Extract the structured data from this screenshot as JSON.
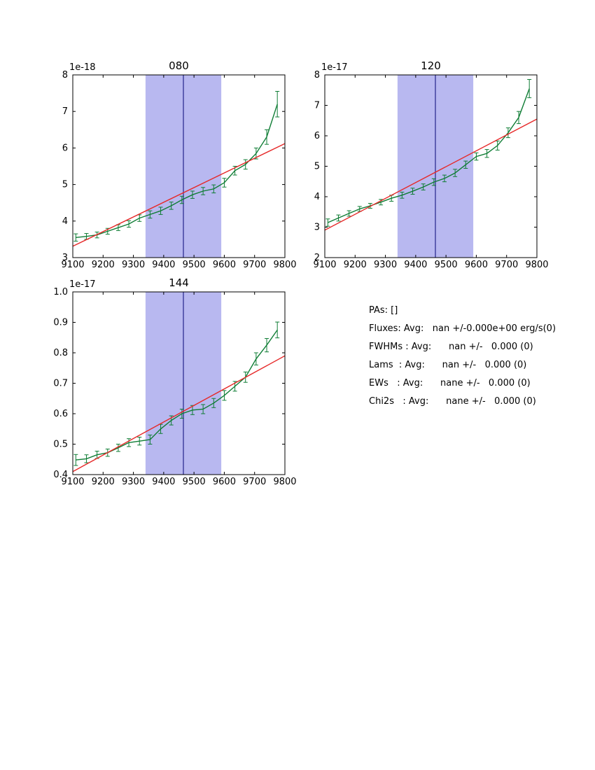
{
  "page": {
    "background": "#ffffff"
  },
  "colors": {
    "band_fill": "#b8b8f0",
    "band_line": "#23238c",
    "spectrum_green": "#0f7d35",
    "fit_red": "#e62929",
    "axis": "#000000"
  },
  "info": {
    "lines": [
      "PAs: []",
      "Fluxes: Avg:   nan +/-0.000e+00 erg/s(0)",
      "FWHMs : Avg:      nan +/-   0.000 (0)",
      "Lams  : Avg:      nan +/-   0.000 (0)",
      "EWs   : Avg:      nane +/-   0.000 (0)",
      "Chi2s   : Avg:      nane +/-   0.000 (0)"
    ]
  },
  "chart_data": [
    {
      "type": "line",
      "title": "080",
      "offset_label": "1e-18",
      "xlabel": "",
      "ylabel": "",
      "xlim": [
        9100,
        9800
      ],
      "ylim": [
        3,
        8
      ],
      "xticks": [
        9100,
        9200,
        9300,
        9400,
        9500,
        9600,
        9700,
        9800
      ],
      "yticks": [
        3,
        4,
        5,
        6,
        7,
        8
      ],
      "yticklabels": [
        "3",
        "4",
        "5",
        "6",
        "7",
        "8"
      ],
      "grid": false,
      "band": {
        "xmin": 9340,
        "xmax": 9590,
        "center": 9465
      },
      "series": [
        {
          "name": "spectrum",
          "color": "#0f7d35",
          "x": [
            9110,
            9145,
            9180,
            9215,
            9250,
            9285,
            9320,
            9355,
            9390,
            9425,
            9460,
            9495,
            9530,
            9565,
            9600,
            9635,
            9670,
            9705,
            9740,
            9775
          ],
          "y": [
            3.55,
            3.58,
            3.62,
            3.72,
            3.82,
            3.92,
            4.08,
            4.18,
            4.28,
            4.42,
            4.58,
            4.72,
            4.82,
            4.88,
            5.05,
            5.38,
            5.55,
            5.85,
            6.3,
            7.2
          ],
          "yerr": [
            0.1,
            0.08,
            0.08,
            0.08,
            0.08,
            0.09,
            0.09,
            0.1,
            0.1,
            0.1,
            0.1,
            0.1,
            0.1,
            0.11,
            0.12,
            0.12,
            0.13,
            0.15,
            0.2,
            0.35
          ]
        },
        {
          "name": "linear-fit",
          "color": "#e62929",
          "x": [
            9100,
            9800
          ],
          "y": [
            3.31,
            6.12
          ]
        }
      ]
    },
    {
      "type": "line",
      "title": "120",
      "offset_label": "1e-17",
      "xlabel": "",
      "ylabel": "",
      "xlim": [
        9100,
        9800
      ],
      "ylim": [
        2,
        8
      ],
      "xticks": [
        9100,
        9200,
        9300,
        9400,
        9500,
        9600,
        9700,
        9800
      ],
      "yticks": [
        2,
        3,
        4,
        5,
        6,
        7,
        8
      ],
      "yticklabels": [
        "2",
        "3",
        "4",
        "5",
        "6",
        "7",
        "8"
      ],
      "grid": false,
      "band": {
        "xmin": 9340,
        "xmax": 9590,
        "center": 9465
      },
      "series": [
        {
          "name": "spectrum",
          "color": "#0f7d35",
          "x": [
            9110,
            9145,
            9180,
            9215,
            9250,
            9285,
            9320,
            9355,
            9390,
            9425,
            9460,
            9495,
            9530,
            9565,
            9600,
            9635,
            9670,
            9705,
            9740,
            9775
          ],
          "y": [
            3.15,
            3.3,
            3.45,
            3.6,
            3.7,
            3.82,
            3.95,
            4.05,
            4.18,
            4.32,
            4.48,
            4.6,
            4.78,
            5.05,
            5.32,
            5.42,
            5.68,
            6.1,
            6.6,
            7.55
          ],
          "yerr": [
            0.12,
            0.1,
            0.09,
            0.08,
            0.08,
            0.09,
            0.1,
            0.1,
            0.1,
            0.1,
            0.11,
            0.11,
            0.12,
            0.12,
            0.12,
            0.13,
            0.15,
            0.16,
            0.2,
            0.3
          ]
        },
        {
          "name": "linear-fit",
          "color": "#e62929",
          "x": [
            9100,
            9800
          ],
          "y": [
            2.9,
            6.55
          ]
        }
      ]
    },
    {
      "type": "line",
      "title": "144",
      "offset_label": "1e-17",
      "xlabel": "",
      "ylabel": "",
      "xlim": [
        9100,
        9800
      ],
      "ylim": [
        0.4,
        1.0
      ],
      "xticks": [
        9100,
        9200,
        9300,
        9400,
        9500,
        9600,
        9700,
        9800
      ],
      "yticks": [
        0.4,
        0.5,
        0.6,
        0.7,
        0.8,
        0.9,
        1.0
      ],
      "yticklabels": [
        "0.4",
        "0.5",
        "0.6",
        "0.7",
        "0.8",
        "0.9",
        "1.0"
      ],
      "grid": false,
      "band": {
        "xmin": 9340,
        "xmax": 9590,
        "center": 9465
      },
      "series": [
        {
          "name": "spectrum",
          "color": "#0f7d35",
          "x": [
            9110,
            9145,
            9180,
            9215,
            9250,
            9285,
            9320,
            9355,
            9390,
            9425,
            9460,
            9495,
            9530,
            9565,
            9600,
            9635,
            9670,
            9705,
            9740,
            9775
          ],
          "y": [
            0.448,
            0.452,
            0.465,
            0.472,
            0.488,
            0.505,
            0.51,
            0.515,
            0.55,
            0.578,
            0.6,
            0.612,
            0.615,
            0.635,
            0.66,
            0.69,
            0.72,
            0.78,
            0.825,
            0.875
          ],
          "yerr": [
            0.018,
            0.013,
            0.012,
            0.012,
            0.012,
            0.013,
            0.013,
            0.015,
            0.015,
            0.015,
            0.015,
            0.015,
            0.015,
            0.015,
            0.016,
            0.016,
            0.017,
            0.02,
            0.022,
            0.026
          ]
        },
        {
          "name": "linear-fit",
          "color": "#e62929",
          "x": [
            9100,
            9800
          ],
          "y": [
            0.41,
            0.79
          ]
        }
      ]
    }
  ]
}
